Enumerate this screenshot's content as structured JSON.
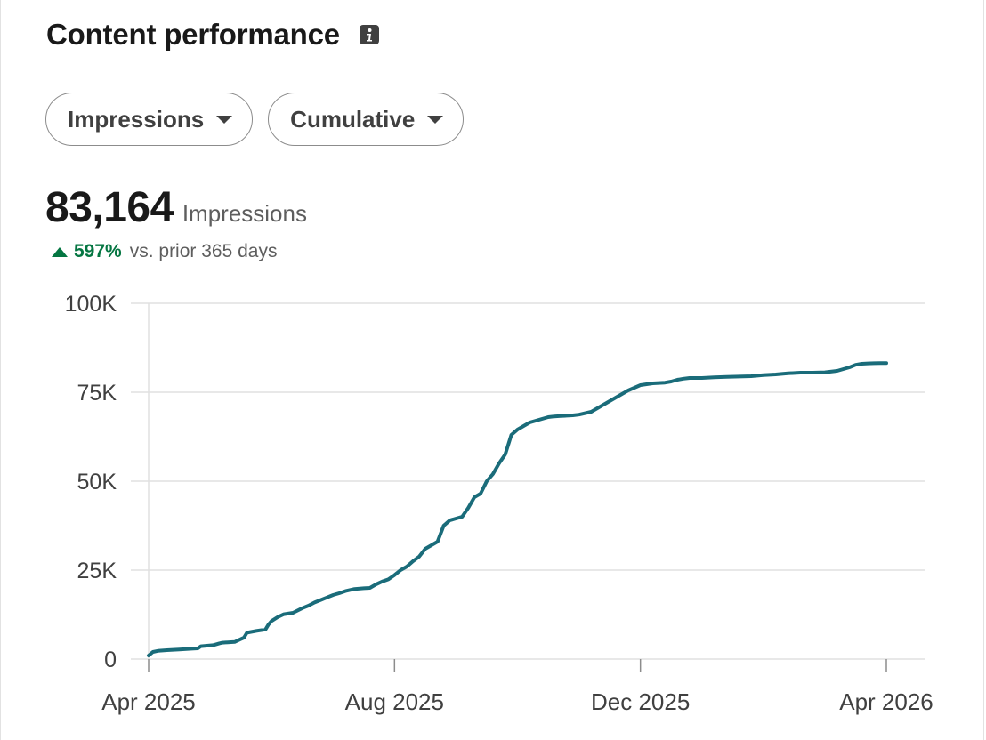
{
  "header": {
    "title": "Content performance",
    "info_icon": "info-icon"
  },
  "filters": {
    "metric": "Impressions",
    "mode": "Cumulative"
  },
  "summary": {
    "value": "83,164",
    "label": "Impressions",
    "delta_pct": "597%",
    "delta_text": "vs. prior 365 days",
    "delta_color": "#057642"
  },
  "colors": {
    "line": "#1a6c7a",
    "grid": "#e0e0e0",
    "positive": "#057642"
  },
  "chart_data": {
    "type": "line",
    "title": "",
    "xlabel": "",
    "ylabel": "",
    "ylim": [
      0,
      100000
    ],
    "yticks": [
      0,
      25000,
      50000,
      75000,
      100000
    ],
    "ytick_labels": [
      "0",
      "25K",
      "50K",
      "75K",
      "100K"
    ],
    "xtick_labels": [
      "Apr 2025",
      "Aug 2025",
      "Dec 2025",
      "Apr 2026"
    ],
    "x_range": [
      0,
      12
    ],
    "xtick_positions": [
      0,
      4,
      8,
      12
    ],
    "grid": true,
    "series": [
      {
        "values_x": [
          0,
          0.07,
          0.15,
          0.3,
          0.5,
          0.7,
          0.8,
          0.85,
          1.05,
          1.15,
          1.2,
          1.4,
          1.5,
          1.55,
          1.6,
          1.75,
          1.9,
          1.95,
          2.0,
          2.1,
          2.2,
          2.35,
          2.5,
          2.6,
          2.7,
          2.8,
          2.9,
          3.0,
          3.1,
          3.2,
          3.35,
          3.5,
          3.6,
          3.7,
          3.8,
          3.9,
          4.0,
          4.1,
          4.2,
          4.3,
          4.4,
          4.5,
          4.6,
          4.7,
          4.8,
          4.9,
          5.0,
          5.1,
          5.2,
          5.3,
          5.4,
          5.5,
          5.6,
          5.7,
          5.8,
          5.9,
          6.0,
          6.1,
          6.2,
          6.3,
          6.4,
          6.5,
          6.6,
          6.7,
          6.8,
          6.9,
          7.0,
          7.2,
          7.4,
          7.6,
          7.8,
          8.0,
          8.2,
          8.4,
          8.5,
          8.6,
          8.7,
          8.8,
          8.9,
          9.0,
          9.2,
          9.4,
          9.6,
          9.8,
          10.0,
          10.2,
          10.4,
          10.6,
          10.8,
          11.0,
          11.2,
          11.4,
          11.5,
          11.6,
          11.7,
          11.8,
          11.9,
          12.0
        ],
        "values": [
          1000,
          2000,
          2300,
          2500,
          2700,
          2900,
          3000,
          3600,
          3900,
          4400,
          4600,
          4800,
          5600,
          6000,
          7400,
          7900,
          8300,
          9700,
          10700,
          11800,
          12600,
          13000,
          14300,
          15000,
          15900,
          16600,
          17300,
          18000,
          18500,
          19100,
          19700,
          19900,
          20000,
          21000,
          21800,
          22400,
          23600,
          25000,
          26000,
          27500,
          28800,
          31000,
          32000,
          33000,
          37500,
          39000,
          39500,
          40000,
          42500,
          45500,
          46500,
          50000,
          52000,
          55000,
          57500,
          63000,
          64500,
          65500,
          66500,
          67000,
          67500,
          68000,
          68200,
          68300,
          68400,
          68500,
          68700,
          69500,
          71500,
          73500,
          75500,
          77000,
          77500,
          77700,
          78000,
          78500,
          78800,
          79000,
          79000,
          79000,
          79200,
          79300,
          79400,
          79500,
          79800,
          80000,
          80300,
          80500,
          80500,
          80600,
          81000,
          82000,
          82700,
          83000,
          83100,
          83150,
          83164,
          83164
        ]
      }
    ]
  }
}
